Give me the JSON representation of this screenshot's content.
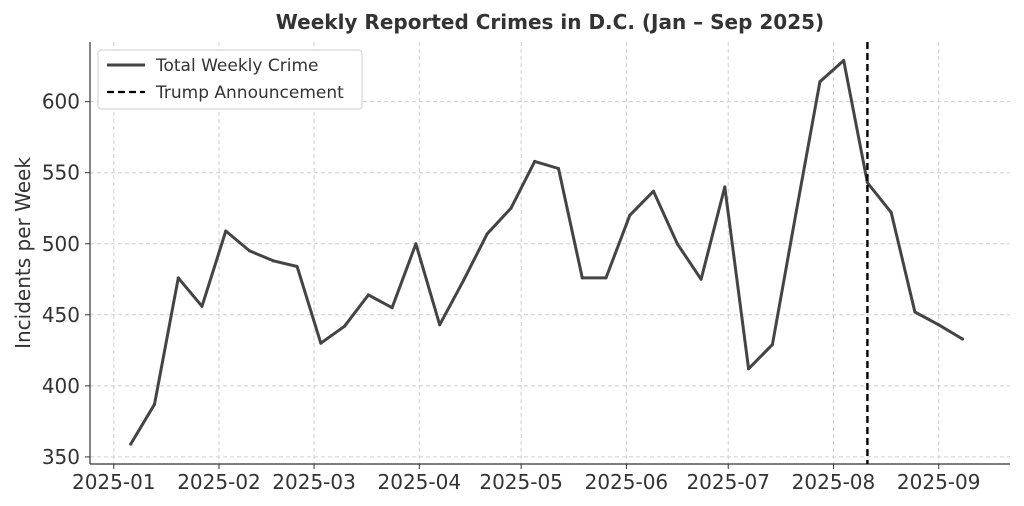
{
  "chart_data": {
    "type": "line",
    "title": "Weekly Reported Crimes in D.C. (Jan – Sep 2025)",
    "xlabel": "",
    "ylabel": "Incidents per Week",
    "xlim": [
      "2024-12-25",
      "2025-09-22"
    ],
    "ylim": [
      345,
      642
    ],
    "x_ticks": [
      "2025-01",
      "2025-02",
      "2025-03",
      "2025-04",
      "2025-05",
      "2025-06",
      "2025-07",
      "2025-08",
      "2025-09"
    ],
    "y_ticks": [
      350,
      400,
      450,
      500,
      550,
      600
    ],
    "grid": true,
    "legend": "top-left",
    "series": [
      {
        "name": "Total Weekly Crime",
        "color": "#444444",
        "x": [
          "2025-01-06",
          "2025-01-13",
          "2025-01-20",
          "2025-01-27",
          "2025-02-03",
          "2025-02-10",
          "2025-02-17",
          "2025-02-24",
          "2025-03-03",
          "2025-03-10",
          "2025-03-17",
          "2025-03-24",
          "2025-03-31",
          "2025-04-07",
          "2025-04-14",
          "2025-04-21",
          "2025-04-28",
          "2025-05-05",
          "2025-05-12",
          "2025-05-19",
          "2025-05-26",
          "2025-06-02",
          "2025-06-09",
          "2025-06-16",
          "2025-06-23",
          "2025-06-30",
          "2025-07-07",
          "2025-07-14",
          "2025-07-21",
          "2025-07-28",
          "2025-08-04",
          "2025-08-11",
          "2025-08-18",
          "2025-08-25",
          "2025-09-01",
          "2025-09-08"
        ],
        "y": [
          359,
          387,
          476,
          456,
          509,
          495,
          488,
          484,
          430,
          442,
          464,
          455,
          500,
          443,
          474,
          507,
          525,
          558,
          553,
          476,
          476,
          520,
          537,
          500,
          475,
          540,
          412,
          429,
          522,
          614,
          629,
          543,
          522,
          452,
          443,
          433
        ]
      }
    ],
    "annotations": [
      {
        "type": "vline",
        "x": "2025-08-11",
        "label": "Trump Announcement",
        "style": "dashed",
        "color": "#000000"
      }
    ]
  }
}
